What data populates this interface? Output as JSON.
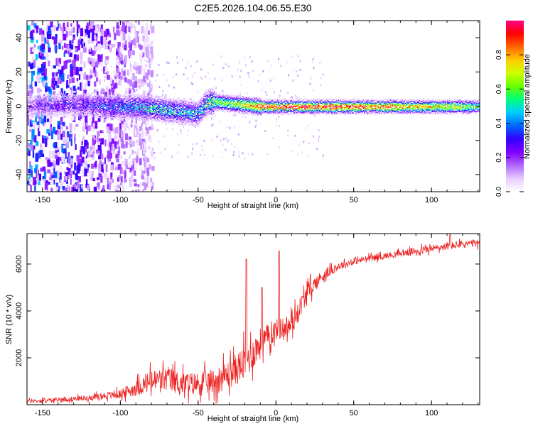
{
  "figure_title": "C2E5.2026.104.06.55.E30",
  "chart_data": [
    {
      "type": "heatmap",
      "title": "C2E5.2026.104.06.55.E30",
      "xlabel": "Height of straight line (km)",
      "ylabel": "Frequency (Hz)",
      "xlim": [
        -160,
        131
      ],
      "ylim": [
        -50,
        50
      ],
      "xticks": [
        -150,
        -100,
        -50,
        0,
        50,
        100
      ],
      "yticks": [
        -40,
        -20,
        0,
        20,
        40
      ],
      "colorbar": {
        "label": "Normalized spectral amplitude",
        "range": [
          0,
          1
        ],
        "ticks": [
          0.0,
          0.2,
          0.4,
          0.6,
          0.8
        ],
        "colormap": [
          "#ffffff",
          "#e6ccff",
          "#b266ff",
          "#7f00ff",
          "#3300ff",
          "#0066ff",
          "#00ccff",
          "#00ff80",
          "#66ff00",
          "#ccff00",
          "#ffcc00",
          "#ff6600",
          "#ff0000",
          "#ff0088"
        ]
      },
      "ridge": {
        "description_x": [
          -160,
          -140,
          -120,
          -100,
          -90,
          -80,
          -70,
          -60,
          -50,
          -45,
          -40,
          -30,
          -20,
          -10,
          0,
          10,
          30,
          50,
          80,
          110,
          131
        ],
        "center_freq_hz": [
          0,
          1,
          1,
          0,
          0,
          -1,
          -2,
          -3,
          -4,
          2,
          3,
          2,
          1,
          0,
          0,
          0,
          0,
          0,
          0,
          0,
          0
        ],
        "peak_amplitude": [
          0.2,
          0.25,
          0.3,
          0.4,
          0.45,
          0.5,
          0.5,
          0.45,
          0.45,
          0.55,
          0.6,
          0.65,
          0.75,
          0.9,
          0.95,
          0.95,
          0.95,
          0.9,
          0.85,
          0.75,
          0.6
        ]
      }
    },
    {
      "type": "line",
      "title": "",
      "xlabel": "Height of straight line (km)",
      "ylabel": "SNR (10 * v/v)",
      "xlim": [
        -160,
        131
      ],
      "ylim": [
        0,
        7300
      ],
      "xticks": [
        -150,
        -100,
        -50,
        0,
        50,
        100
      ],
      "yticks": [
        2000,
        4000,
        6000
      ],
      "series": [
        {
          "name": "SNR",
          "color": "#ee2222",
          "x": [
            -160,
            -140,
            -120,
            -100,
            -90,
            -80,
            -70,
            -60,
            -50,
            -40,
            -30,
            -20,
            -10,
            0,
            10,
            20,
            30,
            40,
            50,
            60,
            70,
            80,
            90,
            100,
            110,
            120,
            131
          ],
          "mean": [
            150,
            200,
            300,
            450,
            700,
            1000,
            1100,
            900,
            900,
            1000,
            1300,
            1800,
            2600,
            3200,
            3400,
            4800,
            5500,
            5900,
            6100,
            6250,
            6350,
            6450,
            6550,
            6650,
            6750,
            6850,
            6900
          ],
          "spread": [
            150,
            180,
            200,
            350,
            600,
            900,
            1000,
            900,
            900,
            1000,
            1100,
            1400,
            1200,
            800,
            900,
            700,
            450,
            300,
            250,
            250,
            250,
            250,
            300,
            300,
            300,
            300,
            300
          ]
        }
      ],
      "spikes": [
        {
          "x": -19,
          "y": 6200
        },
        {
          "x": 2,
          "y": 6550
        },
        {
          "x": -9,
          "y": 5000
        },
        {
          "x": 112,
          "y": 7300
        }
      ]
    }
  ]
}
